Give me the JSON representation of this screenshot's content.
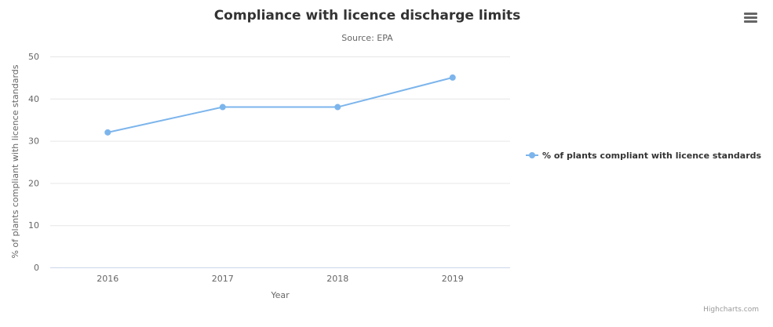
{
  "chart_data": {
    "type": "line",
    "title": "Compliance with licence discharge limits",
    "subtitle": "Source: EPA",
    "xlabel": "Year",
    "ylabel": "% of plants compliant with licence standards",
    "categories": [
      "2016",
      "2017",
      "2018",
      "2019"
    ],
    "series": [
      {
        "name": "% of plants compliant with licence standards",
        "values": [
          32,
          38,
          38,
          45
        ],
        "color": "#7cb5ec"
      }
    ],
    "ylim": [
      0,
      50
    ],
    "yticks": [
      0,
      10,
      20,
      30,
      40,
      50
    ],
    "grid": true,
    "legend_position": "right"
  },
  "menu_icon": "hamburger-menu-icon",
  "credits": "Highcharts.com"
}
